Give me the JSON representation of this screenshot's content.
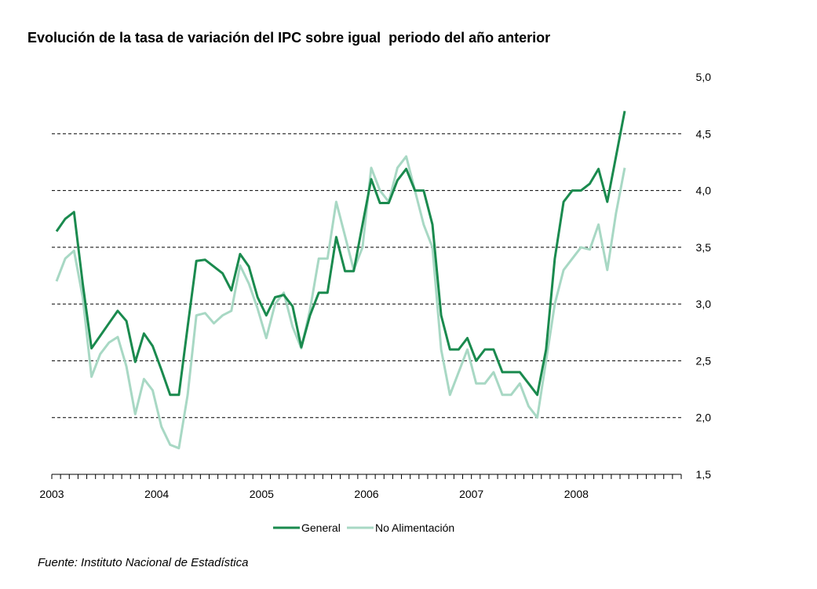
{
  "chart_data": {
    "type": "line",
    "title": "Evolución de la tasa de variación del IPC sobre igual  periodo del año anterior",
    "xlabel": "",
    "ylabel": "",
    "ylim": [
      1.5,
      5.0
    ],
    "yticks": [
      "5,0",
      "4,5",
      "4,0",
      "3,5",
      "3,0",
      "2,5",
      "2,0",
      "1,5"
    ],
    "ytick_values": [
      5.0,
      4.5,
      4.0,
      3.5,
      3.0,
      2.5,
      2.0,
      1.5
    ],
    "x_start": "2003-01",
    "months_on_axis": 72,
    "xticks": [
      "2003",
      "2004",
      "2005",
      "2006",
      "2007",
      "2008"
    ],
    "grid": "horizontal dashed",
    "legend_position": "bottom",
    "y_axis_side": "right",
    "x": [
      "2003-01",
      "2003-02",
      "2003-03",
      "2003-04",
      "2003-05",
      "2003-06",
      "2003-07",
      "2003-08",
      "2003-09",
      "2003-10",
      "2003-11",
      "2003-12",
      "2004-01",
      "2004-02",
      "2004-03",
      "2004-04",
      "2004-05",
      "2004-06",
      "2004-07",
      "2004-08",
      "2004-09",
      "2004-10",
      "2004-11",
      "2004-12",
      "2005-01",
      "2005-02",
      "2005-03",
      "2005-04",
      "2005-05",
      "2005-06",
      "2005-07",
      "2005-08",
      "2005-09",
      "2005-10",
      "2005-11",
      "2005-12",
      "2006-01",
      "2006-02",
      "2006-03",
      "2006-04",
      "2006-05",
      "2006-06",
      "2006-07",
      "2006-08",
      "2006-09",
      "2006-10",
      "2006-11",
      "2006-12",
      "2007-01",
      "2007-02",
      "2007-03",
      "2007-04",
      "2007-05",
      "2007-06",
      "2007-07",
      "2007-08",
      "2007-09",
      "2007-10",
      "2007-11",
      "2007-12",
      "2008-01",
      "2008-02",
      "2008-03",
      "2008-04",
      "2008-05",
      "2008-06"
    ],
    "series": [
      {
        "name": "General",
        "color": "#1a8a4e",
        "values": [
          3.64,
          3.75,
          3.81,
          3.18,
          2.61,
          2.72,
          2.83,
          2.94,
          2.85,
          2.49,
          2.74,
          2.63,
          2.42,
          2.2,
          2.2,
          2.8,
          3.38,
          3.39,
          3.33,
          3.27,
          3.12,
          3.44,
          3.33,
          3.06,
          2.9,
          3.06,
          3.08,
          2.98,
          2.62,
          2.9,
          3.1,
          3.1,
          3.59,
          3.29,
          3.29,
          3.7,
          4.1,
          3.89,
          3.89,
          4.09,
          4.19,
          4.0,
          4.0,
          3.7,
          2.9,
          2.6,
          2.6,
          2.7,
          2.5,
          2.6,
          2.6,
          2.4,
          2.4,
          2.4,
          2.3,
          2.2,
          2.6,
          3.4,
          3.9,
          4.0,
          4.0,
          4.06,
          4.19,
          3.9,
          4.3,
          4.7
        ]
      },
      {
        "name": "No Alimentación",
        "color": "#a8d8c4",
        "values": [
          3.2,
          3.4,
          3.47,
          3.06,
          2.36,
          2.56,
          2.66,
          2.71,
          2.45,
          2.03,
          2.34,
          2.24,
          1.92,
          1.76,
          1.73,
          2.2,
          2.9,
          2.92,
          2.83,
          2.9,
          2.94,
          3.34,
          3.18,
          2.96,
          2.7,
          3.0,
          3.1,
          2.8,
          2.61,
          2.95,
          3.4,
          3.4,
          3.9,
          3.6,
          3.3,
          3.5,
          4.2,
          4.0,
          3.9,
          4.2,
          4.3,
          4.0,
          3.7,
          3.5,
          2.6,
          2.2,
          2.4,
          2.6,
          2.3,
          2.3,
          2.4,
          2.2,
          2.2,
          2.3,
          2.1,
          2.0,
          2.5,
          3.0,
          3.3,
          3.4,
          3.5,
          3.48,
          3.7,
          3.3,
          3.8,
          4.2
        ]
      }
    ]
  },
  "source": "Fuente: Instituto Nacional de Estadística"
}
